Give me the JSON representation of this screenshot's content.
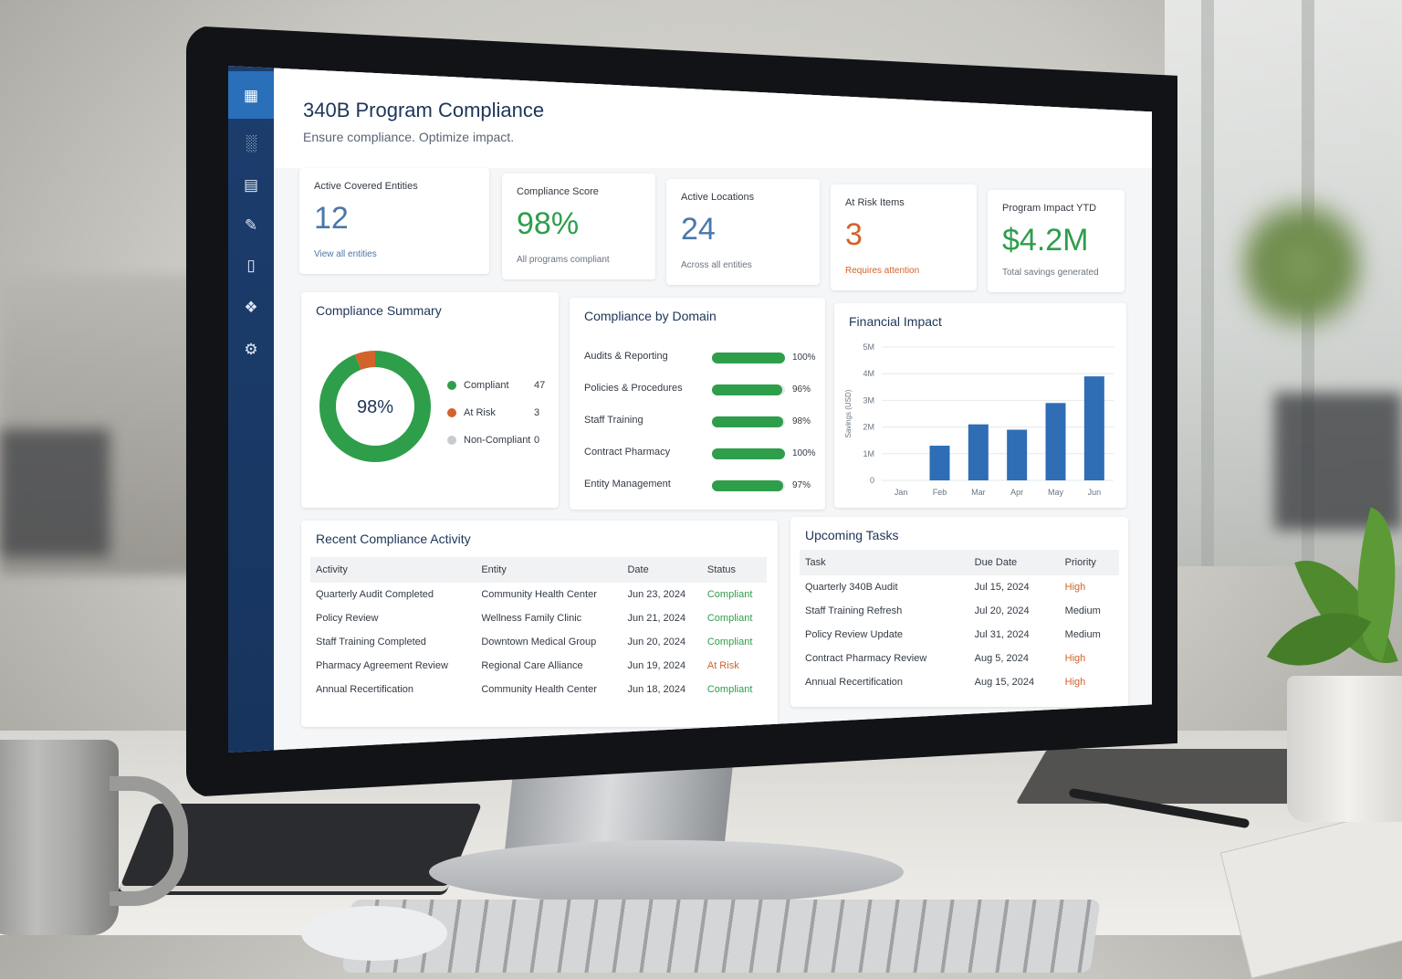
{
  "app": {
    "title": "340B Program Compliance",
    "subtitle": "Ensure compliance. Optimize impact."
  },
  "sidebar": {
    "items": [
      {
        "icon": "dashboard-grid-icon",
        "active": true
      },
      {
        "icon": "bar-chart-icon"
      },
      {
        "icon": "document-icon"
      },
      {
        "icon": "edit-document-icon"
      },
      {
        "icon": "clipboard-icon"
      },
      {
        "icon": "badge-icon"
      },
      {
        "icon": "settings-icon"
      }
    ]
  },
  "kpis": [
    {
      "label": "Active Covered Entities",
      "value": "12",
      "sub": "View all entities",
      "value_color": "#4a78a8",
      "sub_color": "#4a78a8"
    },
    {
      "label": "Compliance Score",
      "value": "98%",
      "sub": "All programs compliant",
      "value_color": "#2e9e4b",
      "sub_color": "#6b7480"
    },
    {
      "label": "Active Locations",
      "value": "24",
      "sub": "Across all entities",
      "value_color": "#4a78a8",
      "sub_color": "#6b7480"
    },
    {
      "label": "At Risk Items",
      "value": "3",
      "sub": "Requires attention",
      "value_color": "#d2632b",
      "sub_color": "#d2632b"
    },
    {
      "label": "Program Impact YTD",
      "value": "$4.2M",
      "sub": "Total savings generated",
      "value_color": "#2e9e4b",
      "sub_color": "#6b7480"
    }
  ],
  "summary": {
    "title": "Compliance Summary",
    "center_label": "98%",
    "legend": [
      {
        "label": "Compliant",
        "value": 47,
        "color": "#2e9e4b"
      },
      {
        "label": "At Risk",
        "value": 3,
        "color": "#d2632b"
      },
      {
        "label": "Non-Compliant",
        "value": 0,
        "color": "#c8ccd0"
      }
    ]
  },
  "domains": {
    "title": "Compliance by Domain",
    "items": [
      {
        "label": "Audits & Reporting",
        "percent": 100,
        "value_text": "100%"
      },
      {
        "label": "Policies & Procedures",
        "percent": 96,
        "value_text": "96%"
      },
      {
        "label": "Staff Training",
        "percent": 98,
        "value_text": "98%"
      },
      {
        "label": "Contract Pharmacy",
        "percent": 100,
        "value_text": "100%"
      },
      {
        "label": "Entity Management",
        "percent": 97,
        "value_text": "97%"
      }
    ]
  },
  "chart_data": {
    "type": "bar",
    "title": "Financial Impact",
    "ylabel": "Savings (USD)",
    "categories": [
      "Jan",
      "Feb",
      "Mar",
      "Apr",
      "May",
      "Jun"
    ],
    "values": [
      0,
      1.3,
      2.1,
      1.9,
      2.9,
      3.9
    ],
    "ylim": [
      0,
      5
    ],
    "yticks": [
      "0",
      "1M",
      "2M",
      "3M",
      "4M",
      "5M"
    ],
    "grid": true,
    "bar_color": "#2f6db5"
  },
  "activity": {
    "title": "Recent Compliance Activity",
    "columns": [
      "Activity",
      "Entity",
      "Date",
      "Status"
    ],
    "rows": [
      {
        "activity": "Quarterly Audit Completed",
        "entity": "Community Health Center",
        "date": "Jun 23, 2024",
        "status": "Compliant",
        "status_color": "#2e9e4b"
      },
      {
        "activity": "Policy Review",
        "entity": "Wellness Family Clinic",
        "date": "Jun 21, 2024",
        "status": "Compliant",
        "status_color": "#2e9e4b"
      },
      {
        "activity": "Staff Training Completed",
        "entity": "Downtown Medical Group",
        "date": "Jun 20, 2024",
        "status": "Compliant",
        "status_color": "#2e9e4b"
      },
      {
        "activity": "Pharmacy Agreement Review",
        "entity": "Regional Care Alliance",
        "date": "Jun 19, 2024",
        "status": "At Risk",
        "status_color": "#d2632b"
      },
      {
        "activity": "Annual Recertification",
        "entity": "Community Health Center",
        "date": "Jun 18, 2024",
        "status": "Compliant",
        "status_color": "#2e9e4b"
      }
    ]
  },
  "tasks": {
    "title": "Upcoming Tasks",
    "columns": [
      "Task",
      "Due Date",
      "Priority"
    ],
    "rows": [
      {
        "task": "Quarterly 340B Audit",
        "due": "Jul 15, 2024",
        "priority": "High",
        "priority_color": "#d2632b"
      },
      {
        "task": "Staff Training Refresh",
        "due": "Jul 20, 2024",
        "priority": "Medium",
        "priority_color": "#333a44"
      },
      {
        "task": "Policy Review Update",
        "due": "Jul 31, 2024",
        "priority": "Medium",
        "priority_color": "#333a44"
      },
      {
        "task": "Contract Pharmacy Review",
        "due": "Aug 5, 2024",
        "priority": "High",
        "priority_color": "#d2632b"
      },
      {
        "task": "Annual Recertification",
        "due": "Aug 15, 2024",
        "priority": "High",
        "priority_color": "#d2632b"
      }
    ]
  }
}
